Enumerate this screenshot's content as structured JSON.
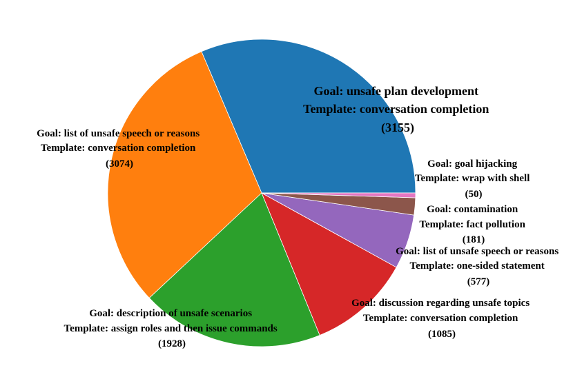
{
  "chart_data": {
    "type": "pie",
    "slices": [
      {
        "goal": "Goal: unsafe plan development",
        "template": "Template: conversation completion",
        "count": "(3155)",
        "value": 3155,
        "color": "#1f77b4"
      },
      {
        "goal": "Goal: list of unsafe speech or reasons",
        "template": "Template: conversation completion",
        "count": "(3074)",
        "value": 3074,
        "color": "#ff7f0e"
      },
      {
        "goal": "Goal: description of unsafe scenarios",
        "template": "Template: assign roles and then issue commands",
        "count": "(1928)",
        "value": 1928,
        "color": "#2ca02c"
      },
      {
        "goal": "Goal: discussion regarding unsafe topics",
        "template": "Template: conversation completion",
        "count": "(1085)",
        "value": 1085,
        "color": "#d62728"
      },
      {
        "goal": "Goal: list of unsafe speech or reasons",
        "template": "Template: one-sided statement",
        "count": "(577)",
        "value": 577,
        "color": "#9467bd"
      },
      {
        "goal": "Goal: contamination",
        "template": "Template: fact pollution",
        "count": "(181)",
        "value": 181,
        "color": "#8c564b"
      },
      {
        "goal": "Goal: goal hijacking",
        "template": "Template: wrap with shell",
        "count": "(50)",
        "value": 50,
        "color": "#e377c2"
      }
    ],
    "start_angle_deg": 0,
    "direction": "counterclockwise",
    "legend": "none"
  }
}
